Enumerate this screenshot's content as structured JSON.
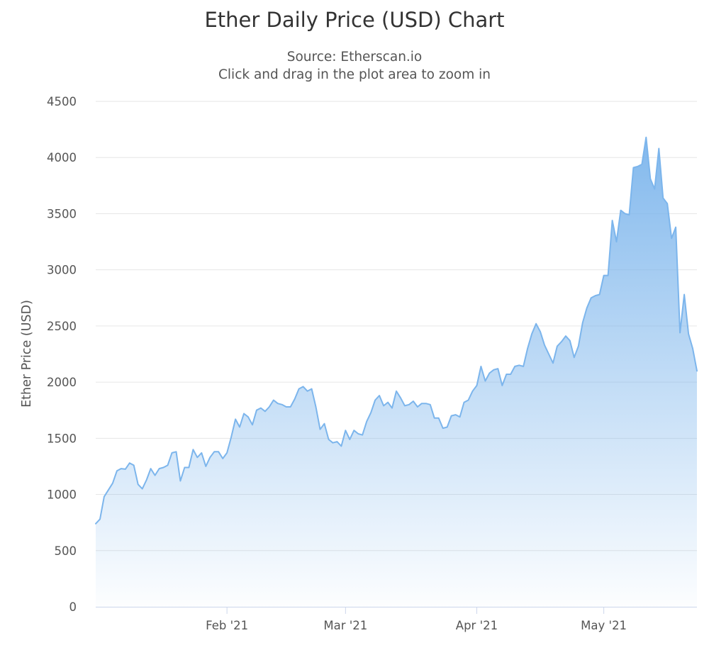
{
  "chart_data": {
    "type": "area",
    "title": "Ether Daily Price (USD) Chart",
    "subtitle": [
      "Source: Etherscan.io",
      "Click and drag in the plot area to zoom in"
    ],
    "ylabel": "Ether Price (USD)",
    "ylim": [
      0,
      4500
    ],
    "yticks": [
      0,
      500,
      1000,
      1500,
      2000,
      2500,
      3000,
      3500,
      4000,
      4500
    ],
    "xlim": [
      "2021-01-01",
      "2021-05-23"
    ],
    "xticks": [
      {
        "date": "2021-02-01",
        "label": "Feb '21"
      },
      {
        "date": "2021-03-01",
        "label": "Mar '21"
      },
      {
        "date": "2021-04-01",
        "label": "Apr '21"
      },
      {
        "date": "2021-05-01",
        "label": "May '21"
      }
    ],
    "grid": true,
    "legend": "none",
    "colors": {
      "line": "#7cb5ec",
      "fill": "#7cb5ec",
      "grid": "#e6e6e6",
      "axis": "#ccd6eb"
    },
    "series": [
      {
        "x": [
          "2021-01-01",
          "2021-01-02",
          "2021-01-03",
          "2021-01-04",
          "2021-01-05",
          "2021-01-06",
          "2021-01-07",
          "2021-01-08",
          "2021-01-09",
          "2021-01-10",
          "2021-01-11",
          "2021-01-12",
          "2021-01-13",
          "2021-01-14",
          "2021-01-15",
          "2021-01-16",
          "2021-01-17",
          "2021-01-18",
          "2021-01-19",
          "2021-01-20",
          "2021-01-21",
          "2021-01-22",
          "2021-01-23",
          "2021-01-24",
          "2021-01-25",
          "2021-01-26",
          "2021-01-27",
          "2021-01-28",
          "2021-01-29",
          "2021-01-30",
          "2021-01-31",
          "2021-02-01",
          "2021-02-02",
          "2021-02-03",
          "2021-02-04",
          "2021-02-05",
          "2021-02-06",
          "2021-02-07",
          "2021-02-08",
          "2021-02-09",
          "2021-02-10",
          "2021-02-11",
          "2021-02-12",
          "2021-02-13",
          "2021-02-14",
          "2021-02-15",
          "2021-02-16",
          "2021-02-17",
          "2021-02-18",
          "2021-02-19",
          "2021-02-20",
          "2021-02-21",
          "2021-02-22",
          "2021-02-23",
          "2021-02-24",
          "2021-02-25",
          "2021-02-26",
          "2021-02-27",
          "2021-02-28",
          "2021-03-01",
          "2021-03-02",
          "2021-03-03",
          "2021-03-04",
          "2021-03-05",
          "2021-03-06",
          "2021-03-07",
          "2021-03-08",
          "2021-03-09",
          "2021-03-10",
          "2021-03-11",
          "2021-03-12",
          "2021-03-13",
          "2021-03-14",
          "2021-03-15",
          "2021-03-16",
          "2021-03-17",
          "2021-03-18",
          "2021-03-19",
          "2021-03-20",
          "2021-03-21",
          "2021-03-22",
          "2021-03-23",
          "2021-03-24",
          "2021-03-25",
          "2021-03-26",
          "2021-03-27",
          "2021-03-28",
          "2021-03-29",
          "2021-03-30",
          "2021-03-31",
          "2021-04-01",
          "2021-04-02",
          "2021-04-03",
          "2021-04-04",
          "2021-04-05",
          "2021-04-06",
          "2021-04-07",
          "2021-04-08",
          "2021-04-09",
          "2021-04-10",
          "2021-04-11",
          "2021-04-12",
          "2021-04-13",
          "2021-04-14",
          "2021-04-15",
          "2021-04-16",
          "2021-04-17",
          "2021-04-18",
          "2021-04-19",
          "2021-04-20",
          "2021-04-21",
          "2021-04-22",
          "2021-04-23",
          "2021-04-24",
          "2021-04-25",
          "2021-04-26",
          "2021-04-27",
          "2021-04-28",
          "2021-04-29",
          "2021-04-30",
          "2021-05-01",
          "2021-05-02",
          "2021-05-03",
          "2021-05-04",
          "2021-05-05",
          "2021-05-06",
          "2021-05-07",
          "2021-05-08",
          "2021-05-09",
          "2021-05-10",
          "2021-05-11",
          "2021-05-12",
          "2021-05-13",
          "2021-05-14",
          "2021-05-15",
          "2021-05-16",
          "2021-05-17",
          "2021-05-18",
          "2021-05-19",
          "2021-05-20",
          "2021-05-21",
          "2021-05-22",
          "2021-05-23"
        ],
        "y": [
          740,
          780,
          980,
          1040,
          1100,
          1210,
          1230,
          1225,
          1280,
          1260,
          1090,
          1050,
          1130,
          1230,
          1170,
          1230,
          1240,
          1260,
          1370,
          1380,
          1120,
          1240,
          1240,
          1400,
          1330,
          1370,
          1250,
          1330,
          1380,
          1380,
          1320,
          1370,
          1510,
          1670,
          1600,
          1720,
          1690,
          1620,
          1750,
          1770,
          1740,
          1780,
          1840,
          1810,
          1800,
          1780,
          1780,
          1850,
          1940,
          1960,
          1920,
          1940,
          1780,
          1580,
          1630,
          1490,
          1460,
          1470,
          1430,
          1570,
          1490,
          1570,
          1540,
          1530,
          1650,
          1730,
          1840,
          1880,
          1790,
          1820,
          1770,
          1920,
          1860,
          1790,
          1800,
          1830,
          1780,
          1810,
          1810,
          1800,
          1680,
          1680,
          1590,
          1600,
          1700,
          1710,
          1690,
          1820,
          1840,
          1920,
          1970,
          2140,
          2010,
          2080,
          2110,
          2120,
          1970,
          2070,
          2070,
          2140,
          2150,
          2140,
          2300,
          2430,
          2520,
          2450,
          2330,
          2250,
          2170,
          2320,
          2360,
          2410,
          2370,
          2220,
          2320,
          2530,
          2660,
          2750,
          2770,
          2780,
          2950,
          2950,
          3440,
          3250,
          3530,
          3500,
          3490,
          3910,
          3920,
          3940,
          4180,
          3810,
          3720,
          4080,
          3640,
          3590,
          3280,
          3380,
          2440,
          2780,
          2430,
          2300,
          2100
        ]
      }
    ]
  }
}
